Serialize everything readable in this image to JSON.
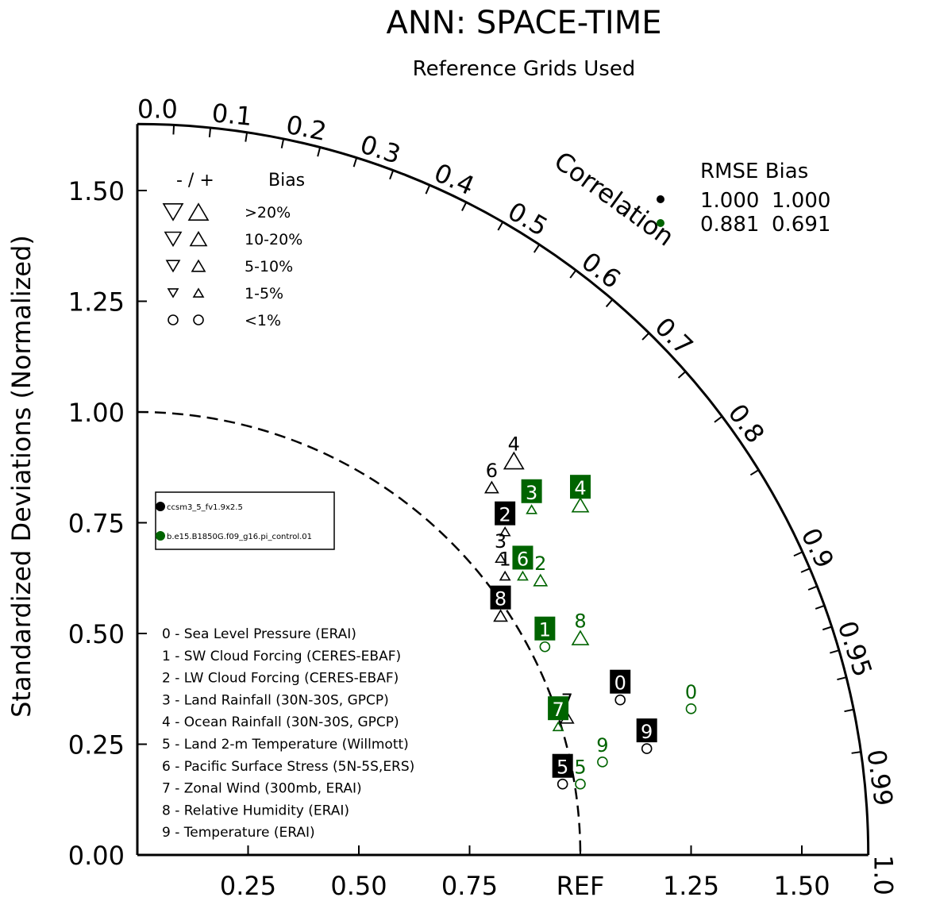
{
  "chart_data": {
    "type": "taylor",
    "title": "ANN: SPACE-TIME",
    "subtitle": "Reference Grids Used",
    "ylabel": "Standardized Deviations (Normalized)",
    "arc_label": "Correlation",
    "ref_label": "REF",
    "std_range": [
      0,
      1.65
    ],
    "x_ticks": [
      "0.25",
      "0.50",
      "0.75",
      "REF",
      "1.25",
      "1.50"
    ],
    "y_ticks": [
      "0.00",
      "0.25",
      "0.50",
      "0.75",
      "1.00",
      "1.25",
      "1.50"
    ],
    "corr_ticks": [
      "0.0",
      "0.1",
      "0.2",
      "0.3",
      "0.4",
      "0.5",
      "0.6",
      "0.7",
      "0.8",
      "0.9",
      "0.95",
      "0.99",
      "1.0"
    ],
    "bias_legend": {
      "header": "-  /  +",
      "title": "Bias",
      "rows": [
        {
          "label": ">20%",
          "marker": "triangle",
          "size": 4
        },
        {
          "label": "10-20%",
          "marker": "triangle",
          "size": 3
        },
        {
          "label": "5-10%",
          "marker": "triangle",
          "size": 2
        },
        {
          "label": "1-5%",
          "marker": "triangle",
          "size": 1
        },
        {
          "label": "<1%",
          "marker": "circle",
          "size": 2
        }
      ]
    },
    "rmse_legend": {
      "header": "RMSE  Bias",
      "rows": [
        {
          "color": "#000000",
          "rmse": "1.000",
          "bias": "1.000"
        },
        {
          "color": "#006400",
          "rmse": "0.881",
          "bias": "0.691"
        }
      ]
    },
    "case_legend": [
      {
        "name": "ccsm3_5_fv1.9x2.5",
        "color": "#000000"
      },
      {
        "name": "b.e15.B1850G.f09_g16.pi_control.01",
        "color": "#006400"
      }
    ],
    "variable_legend": [
      "0 - Sea Level Pressure (ERAI)",
      "1 - SW Cloud Forcing (CERES-EBAF)",
      "2 - LW Cloud Forcing (CERES-EBAF)",
      "3 - Land Rainfall (30N-30S, GPCP)",
      "4 - Ocean Rainfall (30N-30S, GPCP)",
      "5 - Land 2-m Temperature (Willmott)",
      "6 - Pacific Surface Stress (5N-5S,ERS)",
      "7 - Zonal Wind (300mb, ERAI)",
      "8 - Relative Humidity (ERAI)",
      "9 - Temperature (ERAI)"
    ],
    "series": [
      {
        "color": "#000000",
        "points": [
          {
            "id": "0",
            "x": 1.09,
            "y": 0.35,
            "marker": "circle",
            "size": 2,
            "boxed": true
          },
          {
            "id": "1",
            "x": 0.83,
            "y": 0.63,
            "marker": "triangle",
            "size": 1,
            "boxed": false
          },
          {
            "id": "2",
            "x": 0.83,
            "y": 0.73,
            "marker": "triangle",
            "size": 1,
            "boxed": true
          },
          {
            "id": "3",
            "x": 0.82,
            "y": 0.67,
            "marker": "triangle",
            "size": 1,
            "boxed": false
          },
          {
            "id": "4",
            "x": 0.85,
            "y": 0.89,
            "marker": "triangle",
            "size": 4,
            "boxed": false
          },
          {
            "id": "5",
            "x": 0.96,
            "y": 0.16,
            "marker": "circle",
            "size": 2,
            "boxed": true
          },
          {
            "id": "6",
            "x": 0.8,
            "y": 0.83,
            "marker": "triangle",
            "size": 2,
            "boxed": false
          },
          {
            "id": "7",
            "x": 0.97,
            "y": 0.31,
            "marker": "triangle",
            "size": 2,
            "boxed": false
          },
          {
            "id": "8",
            "x": 0.82,
            "y": 0.54,
            "marker": "triangle",
            "size": 2,
            "boxed": true
          },
          {
            "id": "9",
            "x": 1.15,
            "y": 0.24,
            "marker": "circle",
            "size": 2,
            "boxed": true
          }
        ]
      },
      {
        "color": "#006400",
        "points": [
          {
            "id": "0",
            "x": 1.25,
            "y": 0.33,
            "marker": "circle",
            "size": 2,
            "boxed": false
          },
          {
            "id": "1",
            "x": 0.92,
            "y": 0.47,
            "marker": "circle",
            "size": 2,
            "boxed": true
          },
          {
            "id": "2",
            "x": 0.91,
            "y": 0.62,
            "marker": "triangle",
            "size": 2,
            "boxed": false
          },
          {
            "id": "3",
            "x": 0.89,
            "y": 0.78,
            "marker": "triangle",
            "size": 1,
            "boxed": true
          },
          {
            "id": "4",
            "x": 1.0,
            "y": 0.79,
            "marker": "triangle",
            "size": 3,
            "boxed": true
          },
          {
            "id": "5",
            "x": 1.0,
            "y": 0.16,
            "marker": "circle",
            "size": 2,
            "boxed": false
          },
          {
            "id": "6",
            "x": 0.87,
            "y": 0.63,
            "marker": "triangle",
            "size": 1,
            "boxed": true
          },
          {
            "id": "7",
            "x": 0.95,
            "y": 0.29,
            "marker": "triangle",
            "size": 1,
            "boxed": true
          },
          {
            "id": "8",
            "x": 1.0,
            "y": 0.49,
            "marker": "triangle",
            "size": 3,
            "boxed": false
          },
          {
            "id": "9",
            "x": 1.05,
            "y": 0.21,
            "marker": "circle",
            "size": 2,
            "boxed": false
          }
        ]
      }
    ]
  }
}
